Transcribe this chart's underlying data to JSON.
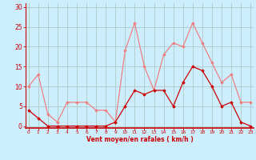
{
  "x": [
    0,
    1,
    2,
    3,
    4,
    5,
    6,
    7,
    8,
    9,
    10,
    11,
    12,
    13,
    14,
    15,
    16,
    17,
    18,
    19,
    20,
    21,
    22,
    23
  ],
  "rafales": [
    10,
    13,
    3,
    1,
    6,
    6,
    6,
    4,
    4,
    1,
    19,
    26,
    15,
    9,
    18,
    21,
    20,
    26,
    21,
    16,
    11,
    13,
    6,
    6
  ],
  "moyen": [
    4,
    2,
    0,
    0,
    0,
    0,
    0,
    0,
    0,
    1,
    5,
    9,
    8,
    9,
    9,
    5,
    11,
    15,
    14,
    10,
    5,
    6,
    1,
    0
  ],
  "color_rafales": "#f08080",
  "color_moyen": "#cc0000",
  "bg_color": "#cceeff",
  "grid_color": "#b0c8c8",
  "xlabel": "Vent moyen/en rafales ( km/h )",
  "ylabel_ticks": [
    0,
    5,
    10,
    15,
    20,
    25,
    30
  ],
  "ylim": [
    -0.5,
    31
  ],
  "xlim": [
    -0.3,
    23.3
  ],
  "title_color": "#cc0000",
  "axis_line_color": "#cc0000"
}
